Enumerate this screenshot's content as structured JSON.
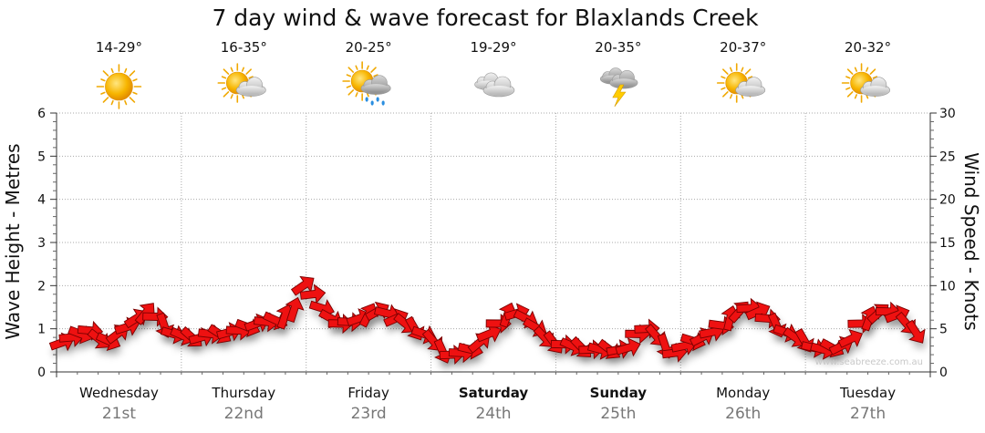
{
  "chart_data": {
    "type": "line",
    "title": "7 day wind & wave forecast for Blaxlands Creek",
    "ylabel": "Wave Height - Metres",
    "y2label": "Wind Speed - Knots",
    "ylim": [
      0,
      6
    ],
    "y2lim": [
      0,
      30
    ],
    "y_ticks": [
      "0",
      "1",
      "2",
      "3",
      "4",
      "5",
      "6"
    ],
    "y2_ticks": [
      "0",
      "5",
      "10",
      "15",
      "20",
      "25",
      "30"
    ],
    "grid": true,
    "arrow_color": "#ee1111",
    "watermark": "www.seabreeze.com.au",
    "days": [
      {
        "name": "Wednesday",
        "date": "21st",
        "temp": "14-29°",
        "icon": "sunny-icon",
        "bold": false
      },
      {
        "name": "Thursday",
        "date": "22nd",
        "temp": "16-35°",
        "icon": "partly-cloudy-icon",
        "bold": false
      },
      {
        "name": "Friday",
        "date": "23rd",
        "temp": "20-25°",
        "icon": "rain-showers-icon",
        "bold": false
      },
      {
        "name": "Saturday",
        "date": "24th",
        "temp": "19-29°",
        "icon": "cloudy-icon",
        "bold": true
      },
      {
        "name": "Sunday",
        "date": "25th",
        "temp": "20-35°",
        "icon": "thunderstorm-icon",
        "bold": true
      },
      {
        "name": "Monday",
        "date": "26th",
        "temp": "20-37°",
        "icon": "partly-cloudy-icon",
        "bold": false
      },
      {
        "name": "Tuesday",
        "date": "27th",
        "temp": "20-32°",
        "icon": "partly-cloudy-icon",
        "bold": false
      }
    ],
    "series": [
      {
        "name": "Wind Speed - Knots",
        "axis": "right",
        "values": [
          3.4,
          4.0,
          4.4,
          4.8,
          3.8,
          3.6,
          4.4,
          5.2,
          6.2,
          6.8,
          6.4,
          5.4,
          4.4,
          4.2,
          4.0,
          4.0,
          4.4,
          4.4,
          4.6,
          4.8,
          5.2,
          5.6,
          5.8,
          6.0,
          6.4,
          7.2,
          10.0,
          9.0,
          7.4,
          6.2,
          5.6,
          5.8,
          6.2,
          6.6,
          7.0,
          6.8,
          6.2,
          5.6,
          5.0,
          4.4,
          3.6,
          2.4,
          2.0,
          2.2,
          2.6,
          3.4,
          4.4,
          5.6,
          6.6,
          6.8,
          6.2,
          5.2,
          4.0,
          3.4,
          3.2,
          3.0,
          2.8,
          2.6,
          2.6,
          2.6,
          2.6,
          2.8,
          4.4,
          5.0,
          4.2,
          3.0,
          2.2,
          3.0,
          3.6,
          4.0,
          4.6,
          5.4,
          6.2,
          7.0,
          7.4,
          7.0,
          6.2,
          5.4,
          4.6,
          4.0,
          3.6,
          2.8,
          2.6,
          2.8,
          3.0,
          3.8,
          5.6,
          6.2,
          6.8,
          7.0,
          6.6,
          5.6,
          4.6
        ]
      }
    ]
  }
}
